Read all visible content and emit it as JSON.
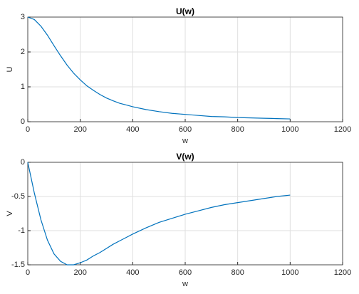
{
  "chart_data": [
    {
      "type": "line",
      "title": "U(w)",
      "x_label": "w",
      "y_label": "U",
      "color": "#0072bd",
      "grid": true,
      "x": [
        0,
        25,
        50,
        75,
        100,
        125,
        150,
        175,
        200,
        225,
        250,
        275,
        300,
        325,
        350,
        375,
        400,
        450,
        500,
        550,
        600,
        650,
        700,
        750,
        800,
        850,
        900,
        950,
        1000
      ],
      "values": [
        3,
        2.93,
        2.74,
        2.48,
        2.18,
        1.89,
        1.62,
        1.39,
        1.2,
        1.03,
        0.9,
        0.78,
        0.68,
        0.6,
        0.53,
        0.48,
        0.43,
        0.35,
        0.29,
        0.24,
        0.21,
        0.18,
        0.15,
        0.14,
        0.12,
        0.11,
        0.1,
        0.09,
        0.08
      ],
      "xlim": [
        0,
        1200
      ],
      "xticks": [
        0,
        200,
        400,
        600,
        800,
        1000,
        1200
      ],
      "ylim": [
        0,
        3
      ],
      "yticks": [
        0,
        1,
        2,
        3
      ]
    },
    {
      "type": "line",
      "title": "V(w)",
      "x_label": "w",
      "y_label": "V",
      "color": "#0072bd",
      "grid": true,
      "x": [
        0,
        25,
        50,
        75,
        100,
        125,
        150,
        175,
        200,
        225,
        250,
        275,
        300,
        325,
        350,
        375,
        400,
        450,
        500,
        550,
        600,
        650,
        700,
        750,
        800,
        850,
        900,
        950,
        1000
      ],
      "values": [
        0,
        -0.45,
        -0.84,
        -1.14,
        -1.34,
        -1.45,
        -1.5,
        -1.5,
        -1.47,
        -1.43,
        -1.37,
        -1.32,
        -1.26,
        -1.2,
        -1.15,
        -1.1,
        -1.05,
        -0.96,
        -0.88,
        -0.82,
        -0.76,
        -0.71,
        -0.66,
        -0.62,
        -0.59,
        -0.56,
        -0.53,
        -0.5,
        -0.48
      ],
      "xlim": [
        0,
        1200
      ],
      "xticks": [
        0,
        200,
        400,
        600,
        800,
        1000,
        1200
      ],
      "ylim": [
        -1.5,
        0
      ],
      "yticks": [
        -1.5,
        -1,
        -0.5,
        0
      ]
    }
  ]
}
